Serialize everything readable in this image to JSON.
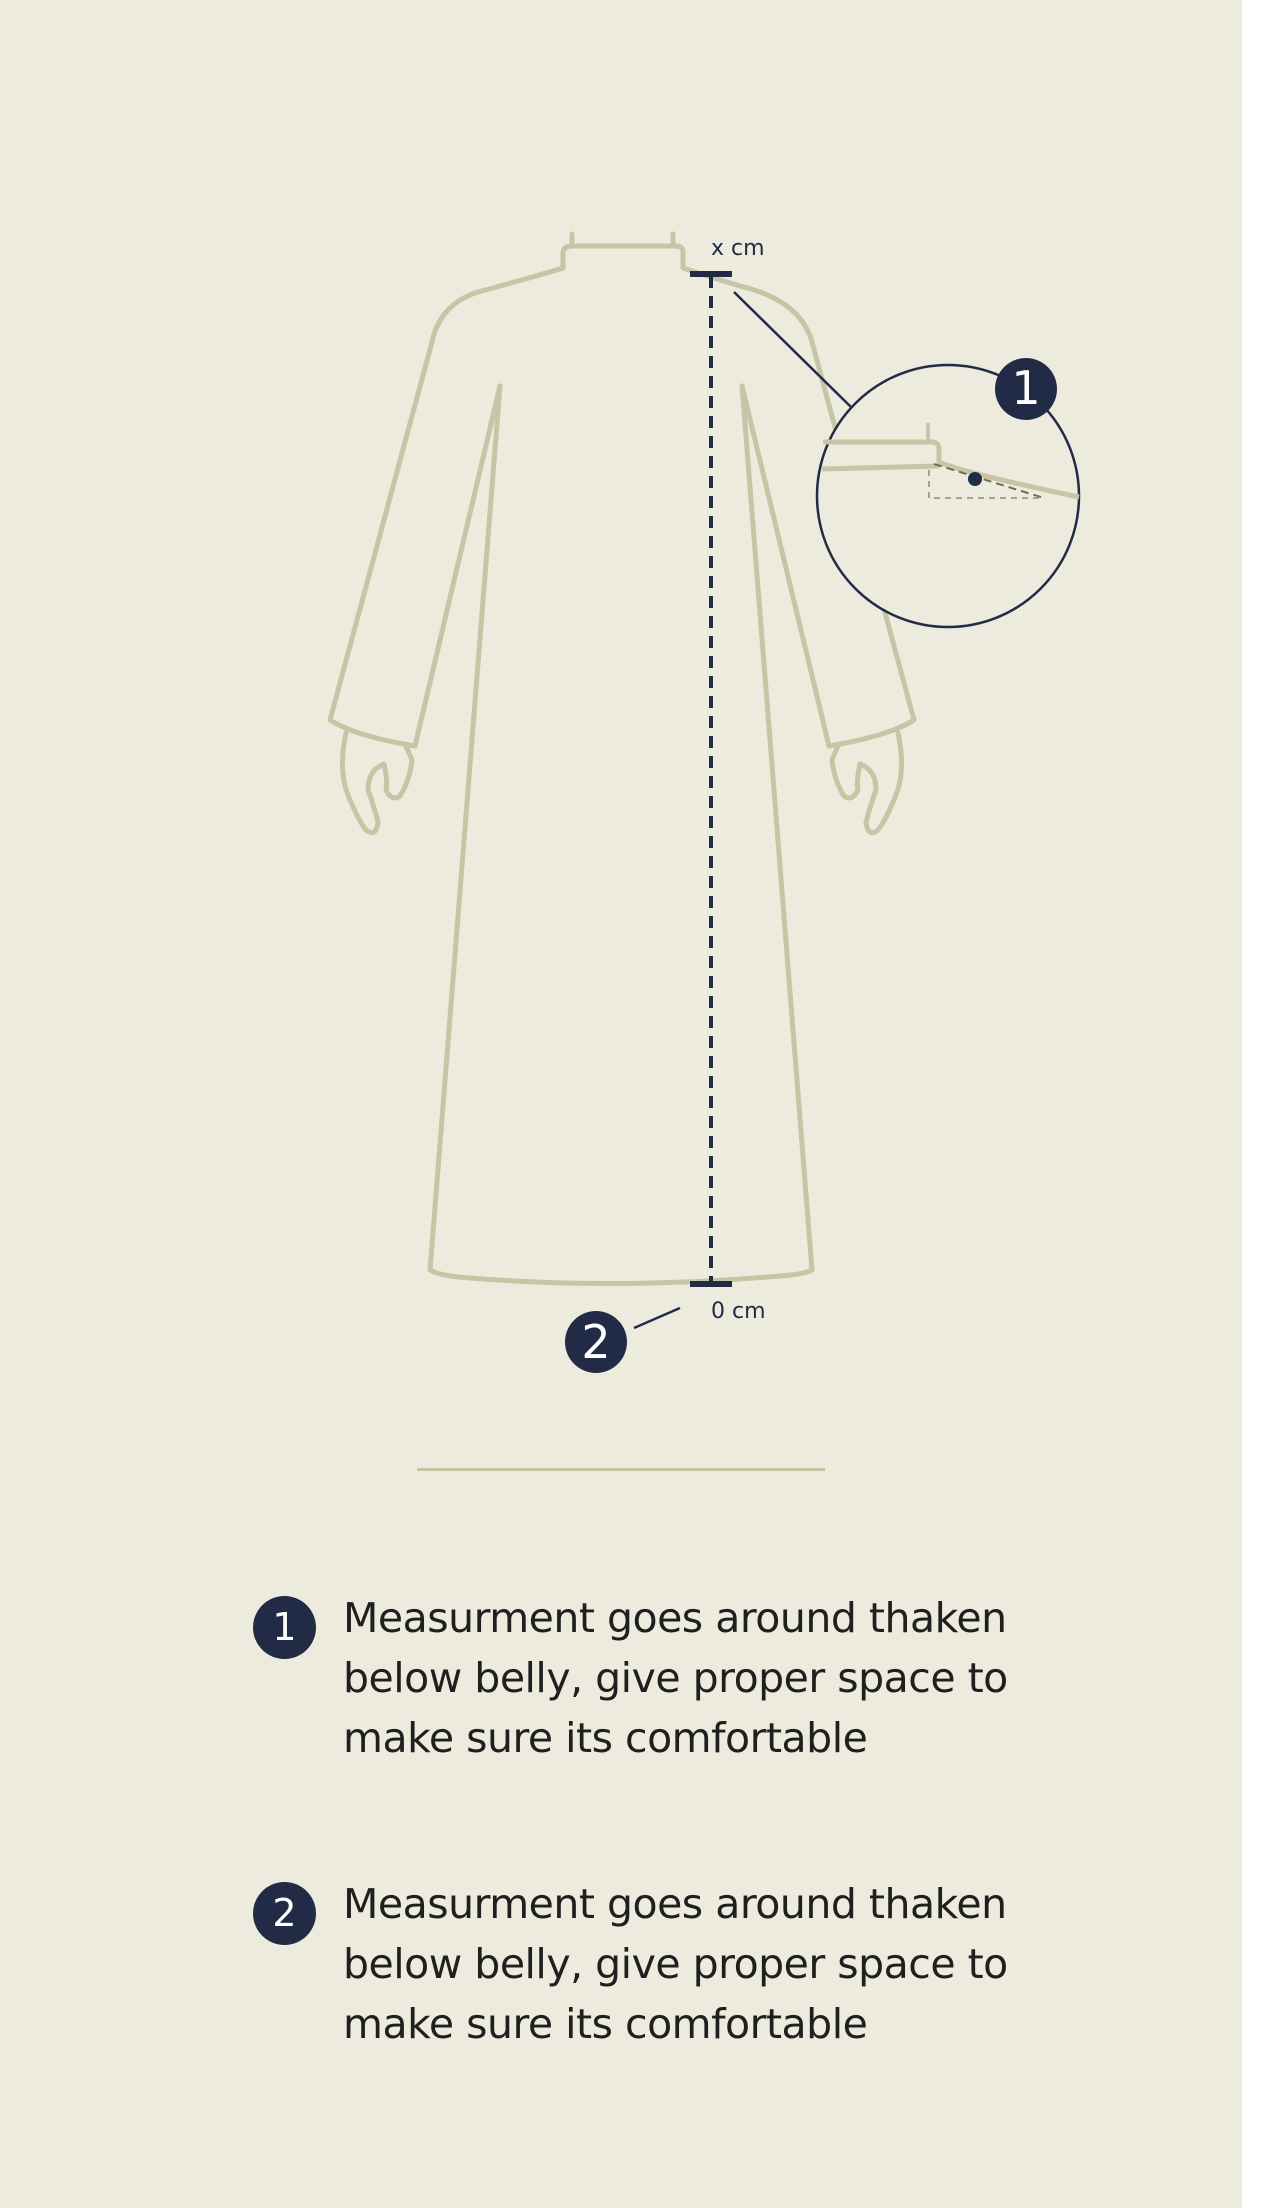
{
  "diagram": {
    "top_label": "x cm",
    "bottom_label": "0 cm",
    "marker_1": "1",
    "marker_2": "2",
    "colors": {
      "background": "#ecebdd",
      "garment_outline": "#c9c4a6",
      "accent": "#222b45"
    }
  },
  "legend": {
    "items": [
      {
        "number": "1",
        "text": "Measurment goes around thaken below belly, give proper space to make sure its comfortable"
      },
      {
        "number": "2",
        "text": "Measurment goes around thaken below belly, give proper space to make sure its comfortable"
      }
    ]
  }
}
